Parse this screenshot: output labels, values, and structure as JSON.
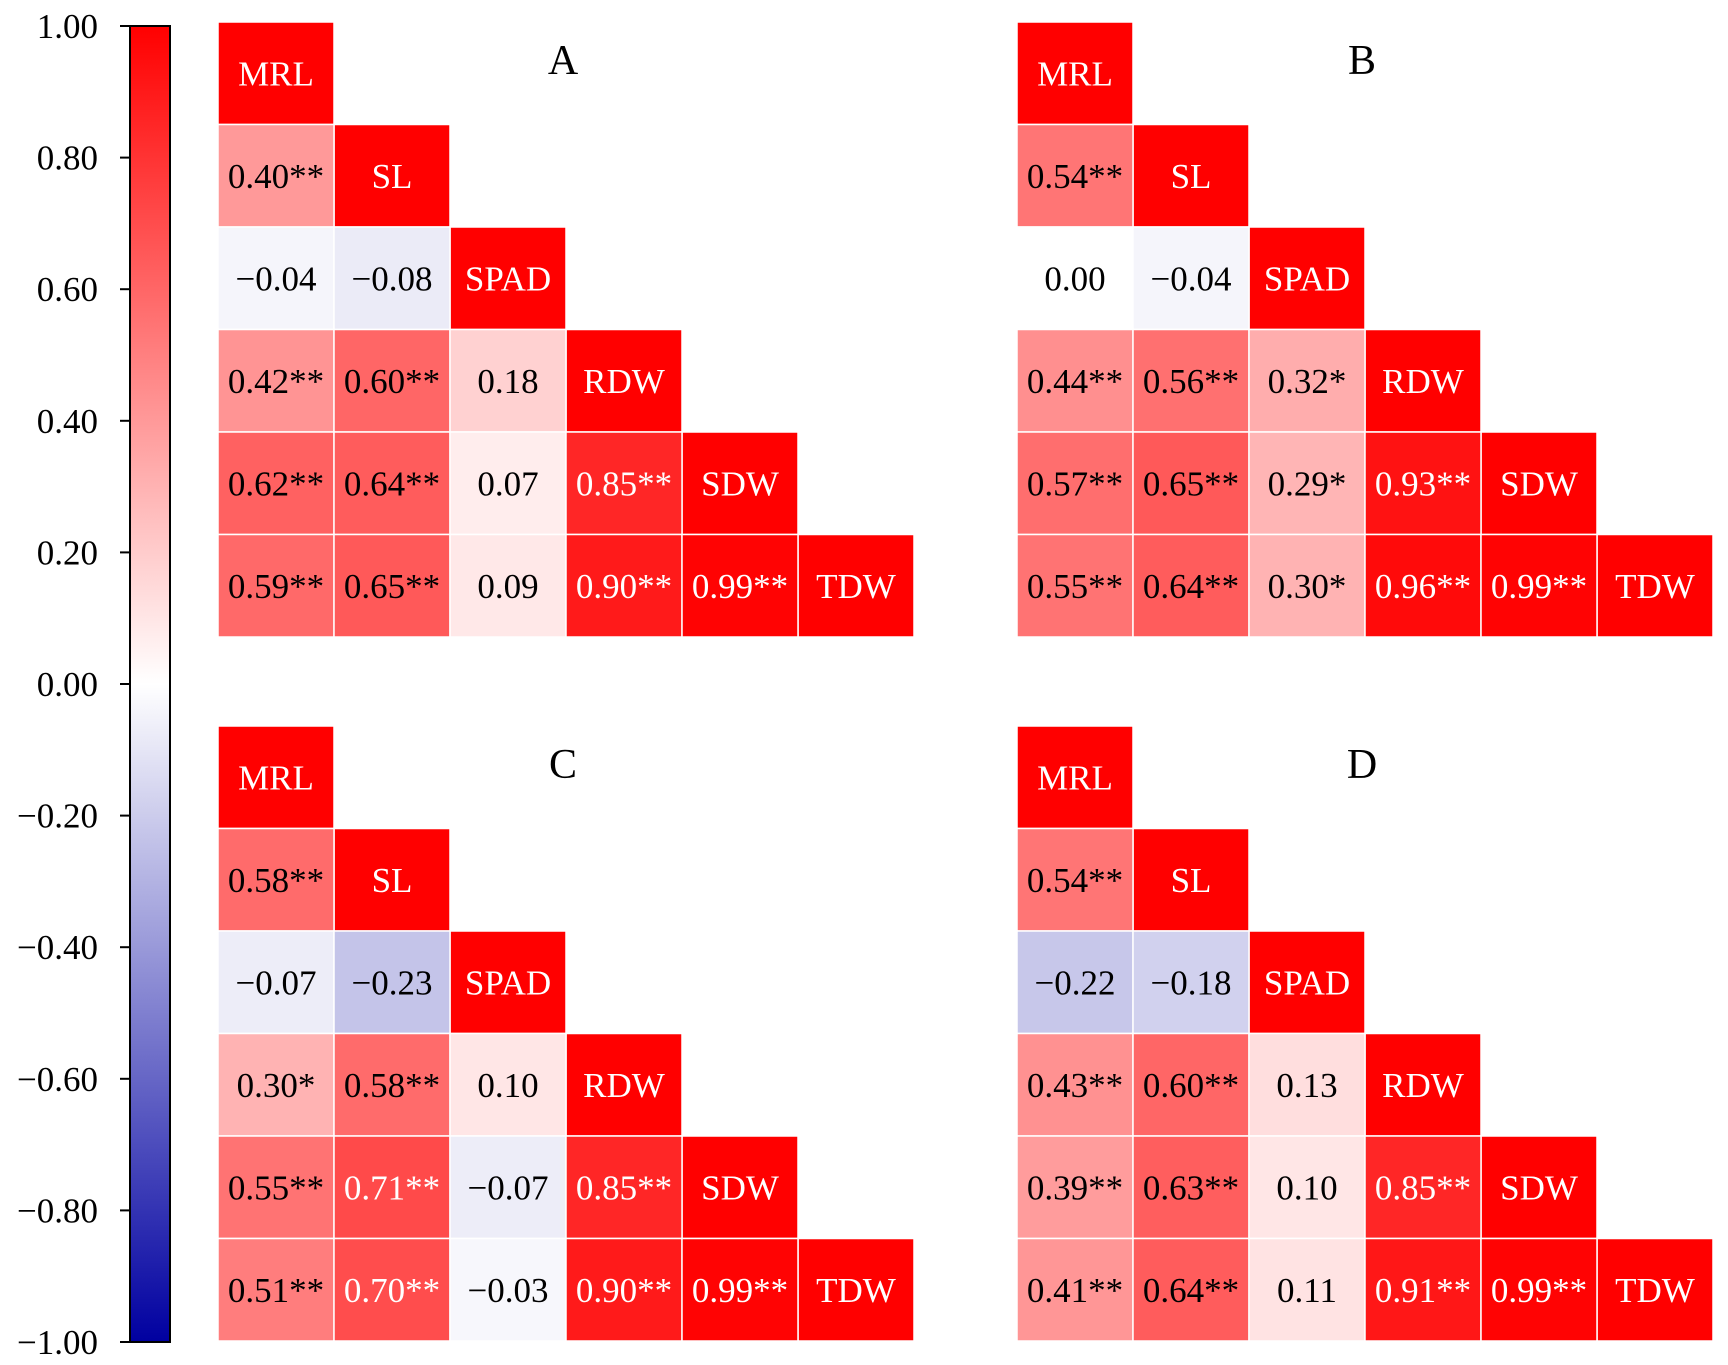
{
  "chart_data": {
    "type": "heatmap",
    "colorbar": {
      "range": [
        -1.0,
        1.0
      ],
      "ticks": [
        "1.00",
        "0.80",
        "0.60",
        "0.40",
        "0.20",
        "0.00",
        "−0.20",
        "−0.40",
        "−0.60",
        "−0.80",
        "−1.00"
      ],
      "tick_values": [
        1.0,
        0.8,
        0.6,
        0.4,
        0.2,
        0.0,
        -0.2,
        -0.4,
        -0.6,
        -0.8,
        -1.0
      ],
      "colors": {
        "negative": "#0000a0",
        "zero": "#ffffff",
        "positive": "#ff0000"
      }
    },
    "panels": [
      {
        "label": "A",
        "variables": [
          "MRL",
          "SL",
          "SPAD",
          "RDW",
          "SDW",
          "TDW"
        ],
        "cells": [
          {
            "row": 1,
            "col": 0,
            "value": 0.4,
            "text": "0.40**"
          },
          {
            "row": 2,
            "col": 0,
            "value": -0.04,
            "text": "−0.04"
          },
          {
            "row": 2,
            "col": 1,
            "value": -0.08,
            "text": "−0.08"
          },
          {
            "row": 3,
            "col": 0,
            "value": 0.42,
            "text": "0.42**"
          },
          {
            "row": 3,
            "col": 1,
            "value": 0.6,
            "text": "0.60**"
          },
          {
            "row": 3,
            "col": 2,
            "value": 0.18,
            "text": "0.18"
          },
          {
            "row": 4,
            "col": 0,
            "value": 0.62,
            "text": "0.62**"
          },
          {
            "row": 4,
            "col": 1,
            "value": 0.64,
            "text": "0.64**"
          },
          {
            "row": 4,
            "col": 2,
            "value": 0.07,
            "text": "0.07"
          },
          {
            "row": 4,
            "col": 3,
            "value": 0.85,
            "text": "0.85**"
          },
          {
            "row": 5,
            "col": 0,
            "value": 0.59,
            "text": "0.59**"
          },
          {
            "row": 5,
            "col": 1,
            "value": 0.65,
            "text": "0.65**"
          },
          {
            "row": 5,
            "col": 2,
            "value": 0.09,
            "text": "0.09"
          },
          {
            "row": 5,
            "col": 3,
            "value": 0.9,
            "text": "0.90**"
          },
          {
            "row": 5,
            "col": 4,
            "value": 0.99,
            "text": "0.99**"
          }
        ]
      },
      {
        "label": "B",
        "variables": [
          "MRL",
          "SL",
          "SPAD",
          "RDW",
          "SDW",
          "TDW"
        ],
        "cells": [
          {
            "row": 1,
            "col": 0,
            "value": 0.54,
            "text": "0.54**"
          },
          {
            "row": 2,
            "col": 0,
            "value": 0.0,
            "text": "0.00"
          },
          {
            "row": 2,
            "col": 1,
            "value": -0.04,
            "text": "−0.04"
          },
          {
            "row": 3,
            "col": 0,
            "value": 0.44,
            "text": "0.44**"
          },
          {
            "row": 3,
            "col": 1,
            "value": 0.56,
            "text": "0.56**"
          },
          {
            "row": 3,
            "col": 2,
            "value": 0.32,
            "text": "0.32*"
          },
          {
            "row": 4,
            "col": 0,
            "value": 0.57,
            "text": "0.57**"
          },
          {
            "row": 4,
            "col": 1,
            "value": 0.65,
            "text": "0.65**"
          },
          {
            "row": 4,
            "col": 2,
            "value": 0.29,
            "text": "0.29*"
          },
          {
            "row": 4,
            "col": 3,
            "value": 0.93,
            "text": "0.93**"
          },
          {
            "row": 5,
            "col": 0,
            "value": 0.55,
            "text": "0.55**"
          },
          {
            "row": 5,
            "col": 1,
            "value": 0.64,
            "text": "0.64**"
          },
          {
            "row": 5,
            "col": 2,
            "value": 0.3,
            "text": "0.30*"
          },
          {
            "row": 5,
            "col": 3,
            "value": 0.96,
            "text": "0.96**"
          },
          {
            "row": 5,
            "col": 4,
            "value": 0.99,
            "text": "0.99**"
          }
        ]
      },
      {
        "label": "C",
        "variables": [
          "MRL",
          "SL",
          "SPAD",
          "RDW",
          "SDW",
          "TDW"
        ],
        "cells": [
          {
            "row": 1,
            "col": 0,
            "value": 0.58,
            "text": "0.58**"
          },
          {
            "row": 2,
            "col": 0,
            "value": -0.07,
            "text": "−0.07"
          },
          {
            "row": 2,
            "col": 1,
            "value": -0.23,
            "text": "−0.23"
          },
          {
            "row": 3,
            "col": 0,
            "value": 0.3,
            "text": "0.30*"
          },
          {
            "row": 3,
            "col": 1,
            "value": 0.58,
            "text": "0.58**"
          },
          {
            "row": 3,
            "col": 2,
            "value": 0.1,
            "text": "0.10"
          },
          {
            "row": 4,
            "col": 0,
            "value": 0.55,
            "text": "0.55**"
          },
          {
            "row": 4,
            "col": 1,
            "value": 0.71,
            "text": "0.71**"
          },
          {
            "row": 4,
            "col": 2,
            "value": -0.07,
            "text": "−0.07"
          },
          {
            "row": 4,
            "col": 3,
            "value": 0.85,
            "text": "0.85**"
          },
          {
            "row": 5,
            "col": 0,
            "value": 0.51,
            "text": "0.51**"
          },
          {
            "row": 5,
            "col": 1,
            "value": 0.7,
            "text": "0.70**"
          },
          {
            "row": 5,
            "col": 2,
            "value": -0.03,
            "text": "−0.03"
          },
          {
            "row": 5,
            "col": 3,
            "value": 0.9,
            "text": "0.90**"
          },
          {
            "row": 5,
            "col": 4,
            "value": 0.99,
            "text": "0.99**"
          }
        ]
      },
      {
        "label": "D",
        "variables": [
          "MRL",
          "SL",
          "SPAD",
          "RDW",
          "SDW",
          "TDW"
        ],
        "cells": [
          {
            "row": 1,
            "col": 0,
            "value": 0.54,
            "text": "0.54**"
          },
          {
            "row": 2,
            "col": 0,
            "value": -0.22,
            "text": "−0.22"
          },
          {
            "row": 2,
            "col": 1,
            "value": -0.18,
            "text": "−0.18"
          },
          {
            "row": 3,
            "col": 0,
            "value": 0.43,
            "text": "0.43**"
          },
          {
            "row": 3,
            "col": 1,
            "value": 0.6,
            "text": "0.60**"
          },
          {
            "row": 3,
            "col": 2,
            "value": 0.13,
            "text": "0.13"
          },
          {
            "row": 4,
            "col": 0,
            "value": 0.39,
            "text": "0.39**"
          },
          {
            "row": 4,
            "col": 1,
            "value": 0.63,
            "text": "0.63**"
          },
          {
            "row": 4,
            "col": 2,
            "value": 0.1,
            "text": "0.10"
          },
          {
            "row": 4,
            "col": 3,
            "value": 0.85,
            "text": "0.85**"
          },
          {
            "row": 5,
            "col": 0,
            "value": 0.41,
            "text": "0.41**"
          },
          {
            "row": 5,
            "col": 1,
            "value": 0.64,
            "text": "0.64**"
          },
          {
            "row": 5,
            "col": 2,
            "value": 0.11,
            "text": "0.11"
          },
          {
            "row": 5,
            "col": 3,
            "value": 0.91,
            "text": "0.91**"
          },
          {
            "row": 5,
            "col": 4,
            "value": 0.99,
            "text": "0.99**"
          }
        ]
      }
    ]
  }
}
